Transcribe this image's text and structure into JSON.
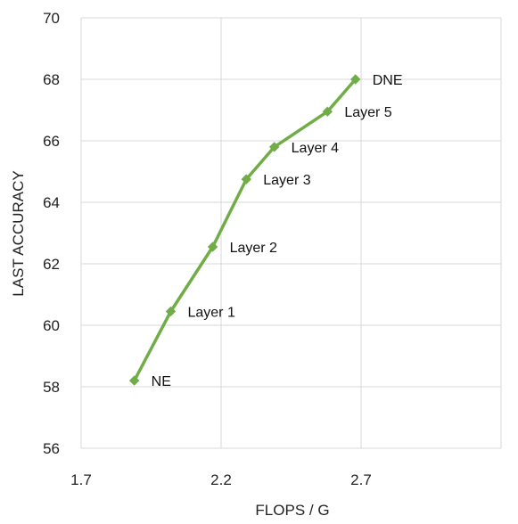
{
  "chart_data": {
    "type": "line",
    "title": "",
    "xlabel": "FLOPS / G",
    "ylabel": "LAST ACCURACY",
    "xlim": [
      1.7,
      3.2
    ],
    "ylim": [
      56,
      70
    ],
    "x_ticks": [
      1.7,
      2.2,
      2.7
    ],
    "x_tick_labels": [
      "1.7",
      "2.2",
      "2.7"
    ],
    "y_ticks": [
      56,
      58,
      60,
      62,
      64,
      66,
      68,
      70
    ],
    "y_tick_labels": [
      "56",
      "58",
      "60",
      "62",
      "64",
      "66",
      "68",
      "70"
    ],
    "grid": true,
    "legend": "none",
    "color": "#70ad47",
    "series": [
      {
        "points": [
          {
            "x": 1.89,
            "y": 58.2,
            "label": "NE"
          },
          {
            "x": 2.02,
            "y": 60.45,
            "label": "Layer 1"
          },
          {
            "x": 2.17,
            "y": 62.55,
            "label": "Layer 2"
          },
          {
            "x": 2.29,
            "y": 64.75,
            "label": "Layer 3"
          },
          {
            "x": 2.39,
            "y": 65.8,
            "label": "Layer 4"
          },
          {
            "x": 2.58,
            "y": 66.95,
            "label": "Layer 5"
          },
          {
            "x": 2.68,
            "y": 68.0,
            "label": "DNE"
          }
        ]
      }
    ]
  }
}
